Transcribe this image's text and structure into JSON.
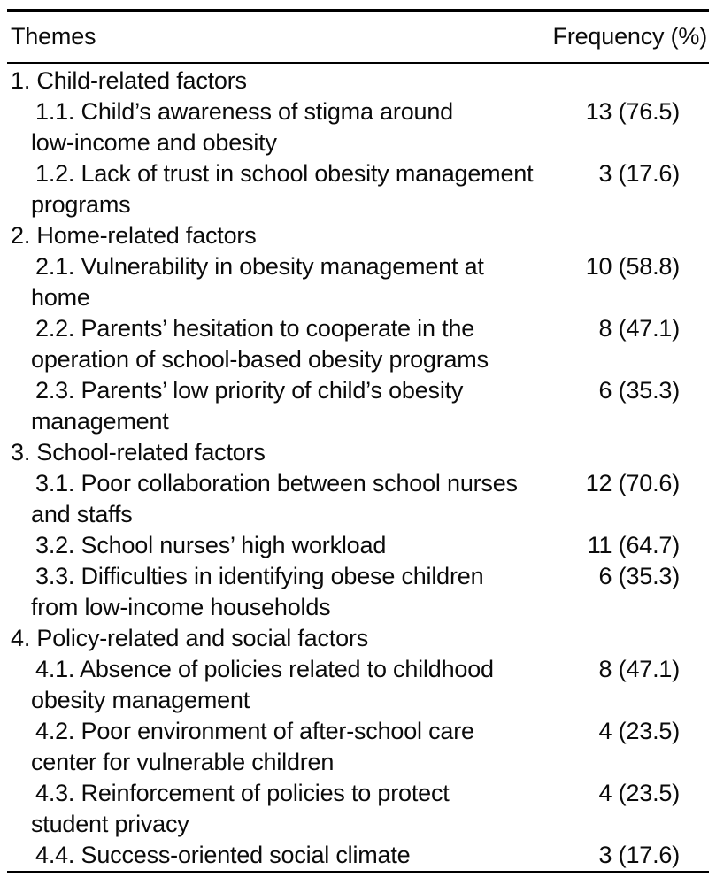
{
  "table": {
    "header": {
      "themes": "Themes",
      "frequency": "Frequency (%)"
    },
    "rows": [
      {
        "level": 1,
        "theme": "1. Child-related factors",
        "lines": [
          "1. Child-related factors"
        ],
        "frequency": ""
      },
      {
        "level": 2,
        "theme": "1.1. Child’s awareness of stigma around low-income and obesity",
        "lines": [
          "1.1. Child’s awareness of stigma around",
          "low-income and obesity"
        ],
        "frequency": "13 (76.5)"
      },
      {
        "level": 2,
        "theme": "1.2. Lack of trust in school obesity management programs",
        "lines": [
          "1.2. Lack of trust in school obesity management",
          "programs"
        ],
        "frequency": "3 (17.6)"
      },
      {
        "level": 1,
        "theme": "2. Home-related factors",
        "lines": [
          "2. Home-related factors"
        ],
        "frequency": ""
      },
      {
        "level": 2,
        "theme": "2.1. Vulnerability in obesity management at home",
        "lines": [
          "2.1. Vulnerability in obesity management at",
          "home"
        ],
        "frequency": "10 (58.8)"
      },
      {
        "level": 2,
        "theme": "2.2. Parents’ hesitation to cooperate in the operation of school-based obesity programs",
        "lines": [
          "2.2. Parents’ hesitation to cooperate in the",
          "operation of school-based obesity programs"
        ],
        "frequency": "8 (47.1)"
      },
      {
        "level": 2,
        "theme": "2.3. Parents’ low priority of child’s obesity management",
        "lines": [
          "2.3. Parents’ low priority of child’s obesity",
          "management"
        ],
        "frequency": "6 (35.3)"
      },
      {
        "level": 1,
        "theme": "3. School-related factors",
        "lines": [
          "3. School-related factors"
        ],
        "frequency": ""
      },
      {
        "level": 2,
        "theme": "3.1. Poor collaboration between school nurses and staffs",
        "lines": [
          "3.1. Poor collaboration between school nurses",
          "and staffs"
        ],
        "frequency": "12 (70.6)"
      },
      {
        "level": 2,
        "theme": "3.2. School nurses’ high workload",
        "lines": [
          "3.2. School nurses’ high workload"
        ],
        "frequency": "11 (64.7)"
      },
      {
        "level": 2,
        "theme": "3.3. Difficulties in identifying obese children from low-income households",
        "lines": [
          "3.3. Difficulties in identifying obese children",
          "from low-income households"
        ],
        "frequency": "6 (35.3)"
      },
      {
        "level": 1,
        "theme": "4. Policy-related and social factors",
        "lines": [
          "4. Policy-related and social factors"
        ],
        "frequency": ""
      },
      {
        "level": 2,
        "theme": "4.1. Absence of policies related to childhood obesity management",
        "lines": [
          "4.1. Absence of policies related to childhood",
          "obesity management"
        ],
        "frequency": "8 (47.1)"
      },
      {
        "level": 2,
        "theme": "4.2. Poor environment of after-school care center for vulnerable children",
        "lines": [
          "4.2. Poor environment of after-school care",
          "center for vulnerable children"
        ],
        "frequency": "4 (23.5)"
      },
      {
        "level": 2,
        "theme": "4.3. Reinforcement of policies to protect student privacy",
        "lines": [
          "4.3. Reinforcement of policies to protect",
          "student privacy"
        ],
        "frequency": "4 (23.5)"
      },
      {
        "level": 2,
        "theme": "4.4. Success-oriented social climate",
        "lines": [
          "4.4. Success-oriented social climate"
        ],
        "frequency": "3 (17.6)"
      }
    ]
  }
}
